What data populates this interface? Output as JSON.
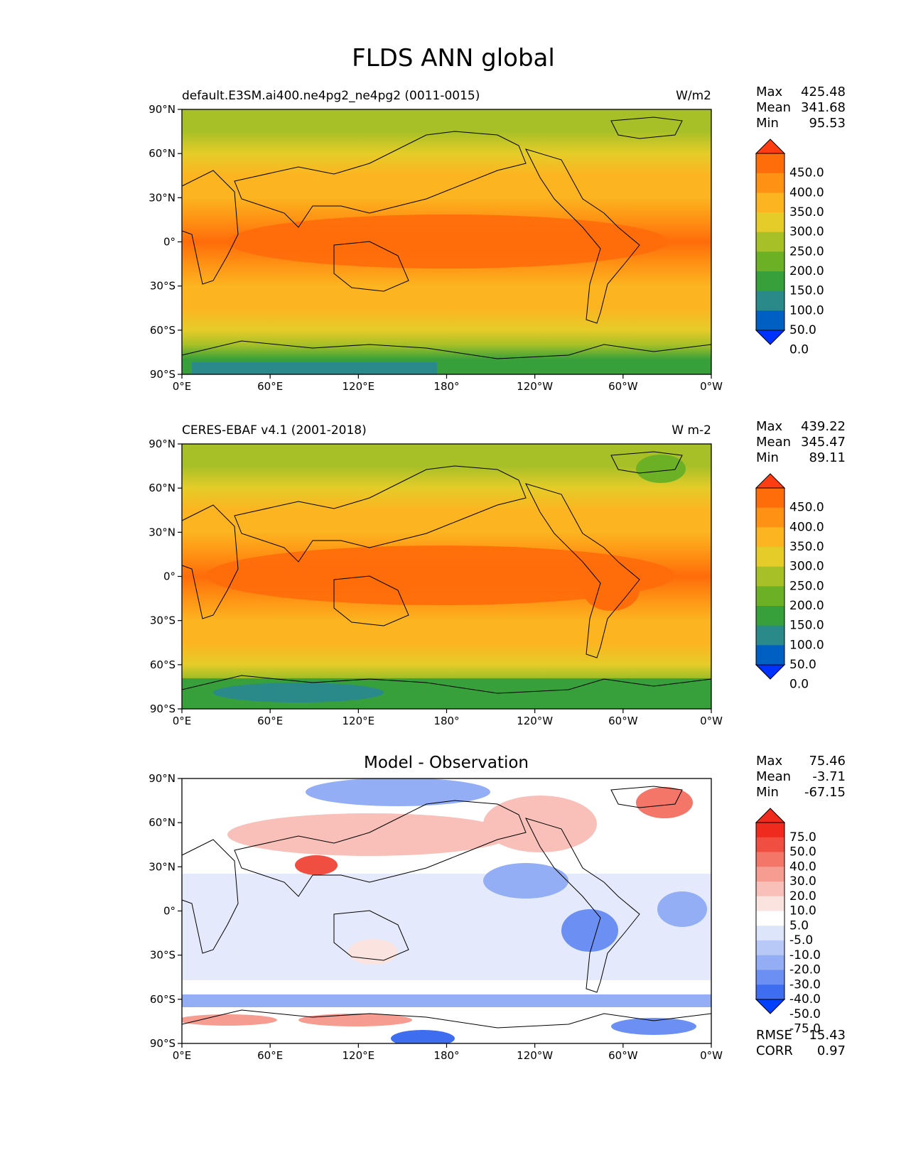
{
  "figure": {
    "title": "FLDS ANN global"
  },
  "colors": {
    "abs_levels": [
      "#0032ff",
      "#005fc2",
      "#2a8a8a",
      "#37a03a",
      "#6bb025",
      "#a7c027",
      "#e5cc28",
      "#fcb420",
      "#ff9214",
      "#ff6c0a",
      "#ff3c12"
    ],
    "diff_levels": [
      "#0040ff",
      "#3f6df0",
      "#6b8ff3",
      "#93aef5",
      "#b8c9f7",
      "#dde5fa",
      "#ffffff",
      "#fbe3e0",
      "#f8c0b9",
      "#f69c90",
      "#f37669",
      "#f04e40",
      "#ee2b1d"
    ],
    "land_outline": "#000000"
  },
  "chart_data": [
    {
      "type": "heatmap",
      "panel": "test",
      "title": "default.E3SM.ai400.ne4pg2_ne4pg2 (0011-0015)",
      "units": "W/m2",
      "xticks": [
        "0°E",
        "60°E",
        "120°E",
        "180°",
        "120°W",
        "60°W",
        "0°W"
      ],
      "yticks": [
        "90°N",
        "60°N",
        "30°N",
        "0°",
        "30°S",
        "60°S",
        "90°S"
      ],
      "stats": {
        "Max": "425.48",
        "Mean": "341.68",
        "Min": "95.53"
      },
      "colorbar_levels": [
        "450.0",
        "400.0",
        "350.0",
        "300.0",
        "250.0",
        "200.0",
        "150.0",
        "100.0",
        "50.0",
        "0.0"
      ],
      "zonal_profile": [
        {
          "lat": 90,
          "value": 200
        },
        {
          "lat": 75,
          "value": 240
        },
        {
          "lat": 60,
          "value": 270
        },
        {
          "lat": 45,
          "value": 300
        },
        {
          "lat": 30,
          "value": 340
        },
        {
          "lat": 15,
          "value": 390
        },
        {
          "lat": 0,
          "value": 405
        },
        {
          "lat": -15,
          "value": 385
        },
        {
          "lat": -30,
          "value": 340
        },
        {
          "lat": -45,
          "value": 300
        },
        {
          "lat": -60,
          "value": 265
        },
        {
          "lat": -70,
          "value": 200
        },
        {
          "lat": -80,
          "value": 130
        },
        {
          "lat": -90,
          "value": 100
        }
      ]
    },
    {
      "type": "heatmap",
      "panel": "reference",
      "title": "CERES-EBAF v4.1 (2001-2018)",
      "units": "W m-2",
      "xticks": [
        "0°E",
        "60°E",
        "120°E",
        "180°",
        "120°W",
        "60°W",
        "0°W"
      ],
      "yticks": [
        "90°N",
        "60°N",
        "30°N",
        "0°",
        "30°S",
        "60°S",
        "90°S"
      ],
      "stats": {
        "Max": "439.22",
        "Mean": "345.47",
        "Min": "89.11"
      },
      "colorbar_levels": [
        "450.0",
        "400.0",
        "350.0",
        "300.0",
        "250.0",
        "200.0",
        "150.0",
        "100.0",
        "50.0",
        "0.0"
      ],
      "zonal_profile": [
        {
          "lat": 90,
          "value": 210
        },
        {
          "lat": 75,
          "value": 235
        },
        {
          "lat": 60,
          "value": 265
        },
        {
          "lat": 45,
          "value": 300
        },
        {
          "lat": 30,
          "value": 345
        },
        {
          "lat": 15,
          "value": 395
        },
        {
          "lat": 0,
          "value": 410
        },
        {
          "lat": -15,
          "value": 390
        },
        {
          "lat": -30,
          "value": 345
        },
        {
          "lat": -45,
          "value": 305
        },
        {
          "lat": -60,
          "value": 265
        },
        {
          "lat": -68,
          "value": 200
        },
        {
          "lat": -78,
          "value": 120
        },
        {
          "lat": -90,
          "value": 140
        }
      ]
    },
    {
      "type": "heatmap",
      "panel": "difference",
      "title": "Model - Observation",
      "xticks": [
        "0°E",
        "60°E",
        "120°E",
        "180°",
        "120°W",
        "60°W",
        "0°W"
      ],
      "yticks": [
        "90°N",
        "60°N",
        "30°N",
        "0°",
        "30°S",
        "60°S",
        "90°S"
      ],
      "stats": {
        "Max": "75.46",
        "Mean": "-3.71",
        "Min": "-67.15"
      },
      "colorbar_levels": [
        "75.0",
        "50.0",
        "40.0",
        "30.0",
        "20.0",
        "10.0",
        "5.0",
        "-5.0",
        "-10.0",
        "-20.0",
        "-30.0",
        "-40.0",
        "-50.0",
        "-75.0"
      ],
      "metrics": {
        "RMSE": "15.43",
        "CORR": "0.97"
      }
    }
  ]
}
